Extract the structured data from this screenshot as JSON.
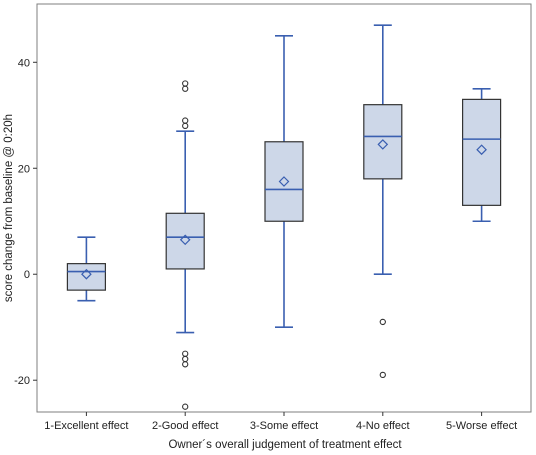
{
  "chart_data": {
    "type": "box",
    "xlabel": "Owner´s overall judgement of treatment effect",
    "ylabel": "score change from baseline @ 0:20h",
    "ylim": [
      -26,
      51
    ],
    "y_ticks": [
      -20,
      0,
      20,
      40
    ],
    "grid": false,
    "legend": "none",
    "categories": [
      "1-Excellent effect",
      "2-Good effect",
      "3-Some effect",
      "4-No effect",
      "5-Worse effect"
    ],
    "boxes": [
      {
        "category": "1-Excellent effect",
        "whisker_low": -5,
        "q1": -3,
        "median": 0.5,
        "q3": 2,
        "whisker_high": 7,
        "mean": 0,
        "outliers": []
      },
      {
        "category": "2-Good effect",
        "whisker_low": -11,
        "q1": 1,
        "median": 7,
        "q3": 11.5,
        "whisker_high": 27,
        "mean": 6.5,
        "outliers": [
          -25,
          -17,
          -16,
          -15,
          28,
          29,
          35,
          36
        ]
      },
      {
        "category": "3-Some effect",
        "whisker_low": -10,
        "q1": 10,
        "median": 16,
        "q3": 25,
        "whisker_high": 45,
        "mean": 17.5,
        "outliers": []
      },
      {
        "category": "4-No effect",
        "whisker_low": 0,
        "q1": 18,
        "median": 26,
        "q3": 32,
        "whisker_high": 47,
        "mean": 24.5,
        "outliers": [
          -19,
          -9
        ]
      },
      {
        "category": "5-Worse effect",
        "whisker_low": 10,
        "q1": 13,
        "median": 25.5,
        "q3": 33,
        "whisker_high": 35,
        "mean": 23.5,
        "outliers": []
      }
    ],
    "colors": {
      "box_fill": "#cdd7e8",
      "box_edge": "#333333",
      "median_line": "#3a5fb0",
      "whisker": "#3a5fb0",
      "mean_marker": "#3a5fb0",
      "outlier": "#333333",
      "frame": "#7f7f7f"
    }
  }
}
